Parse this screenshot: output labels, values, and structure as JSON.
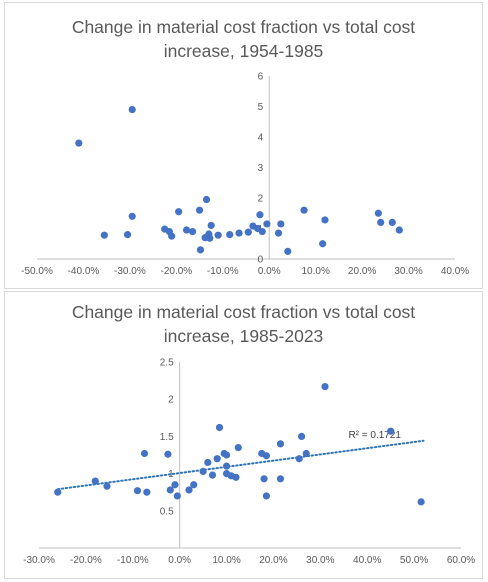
{
  "chart_data": [
    {
      "type": "scatter",
      "title_lines": [
        "Change in material cost fraction vs total cost",
        "increase, 1954-1985"
      ],
      "xlabel": "",
      "ylabel": "",
      "xlim": [
        -0.5,
        0.4
      ],
      "ylim": [
        0,
        6
      ],
      "x_ticks": [
        "-50.0%",
        "-40.0%",
        "-30.0%",
        "-20.0%",
        "-10.0%",
        "0.0%",
        "10.0%",
        "20.0%",
        "30.0%",
        "40.0%"
      ],
      "y_ticks": [
        "0",
        "1",
        "2",
        "3",
        "4",
        "5",
        "6"
      ],
      "grid": false,
      "marker_color": "#4472c4",
      "points": [
        [
          -0.41,
          3.8
        ],
        [
          -0.295,
          4.9
        ],
        [
          -0.355,
          0.78
        ],
        [
          -0.305,
          0.8
        ],
        [
          -0.295,
          1.4
        ],
        [
          -0.225,
          0.98
        ],
        [
          -0.215,
          0.9
        ],
        [
          -0.21,
          0.75
        ],
        [
          -0.195,
          1.55
        ],
        [
          -0.178,
          0.95
        ],
        [
          -0.165,
          0.9
        ],
        [
          -0.15,
          1.6
        ],
        [
          -0.148,
          0.3
        ],
        [
          -0.138,
          0.7
        ],
        [
          -0.135,
          1.95
        ],
        [
          -0.13,
          0.82
        ],
        [
          -0.128,
          0.68
        ],
        [
          -0.125,
          1.1
        ],
        [
          -0.11,
          0.78
        ],
        [
          -0.085,
          0.8
        ],
        [
          -0.065,
          0.85
        ],
        [
          -0.045,
          0.88
        ],
        [
          -0.035,
          1.08
        ],
        [
          -0.025,
          1.0
        ],
        [
          -0.02,
          1.45
        ],
        [
          -0.015,
          0.9
        ],
        [
          -0.005,
          1.15
        ],
        [
          0.02,
          0.85
        ],
        [
          0.025,
          1.15
        ],
        [
          0.04,
          0.25
        ],
        [
          0.075,
          1.6
        ],
        [
          0.115,
          0.5
        ],
        [
          0.12,
          1.28
        ],
        [
          0.235,
          1.5
        ],
        [
          0.24,
          1.2
        ],
        [
          0.265,
          1.2
        ],
        [
          0.28,
          0.95
        ]
      ]
    },
    {
      "type": "scatter",
      "title_lines": [
        "Change in material cost fraction vs total cost",
        "increase, 1985-2023"
      ],
      "xlabel": "",
      "ylabel": "",
      "xlim": [
        -0.3,
        0.6
      ],
      "ylim": [
        0,
        2.5
      ],
      "x_ticks": [
        "-30.0%",
        "-20.0%",
        "-10.0%",
        "0.0%",
        "10.0%",
        "20.0%",
        "30.0%",
        "40.0%",
        "50.0%",
        "60.0%"
      ],
      "y_ticks": [
        "0.5",
        "1",
        "1.5",
        "2",
        "2.5"
      ],
      "grid": false,
      "marker_color": "#4472c4",
      "trendline": {
        "type": "linear",
        "style": "dotted",
        "color": "#2e75b6",
        "r_squared_label": "R² = 0.1721",
        "x_range": [
          -0.26,
          0.52
        ]
      },
      "points": [
        [
          -0.26,
          0.75
        ],
        [
          -0.18,
          0.9
        ],
        [
          -0.155,
          0.83
        ],
        [
          -0.09,
          0.77
        ],
        [
          -0.075,
          1.27
        ],
        [
          -0.07,
          0.75
        ],
        [
          -0.025,
          1.26
        ],
        [
          -0.02,
          0.78
        ],
        [
          -0.01,
          0.85
        ],
        [
          -0.005,
          0.7
        ],
        [
          0.02,
          0.78
        ],
        [
          0.03,
          0.85
        ],
        [
          0.05,
          1.03
        ],
        [
          0.06,
          1.15
        ],
        [
          0.07,
          0.98
        ],
        [
          0.08,
          1.2
        ],
        [
          0.085,
          1.62
        ],
        [
          0.095,
          1.27
        ],
        [
          0.1,
          1.25
        ],
        [
          0.1,
          1.1
        ],
        [
          0.1,
          1.0
        ],
        [
          0.11,
          0.97
        ],
        [
          0.12,
          0.95
        ],
        [
          0.125,
          1.35
        ],
        [
          0.175,
          1.27
        ],
        [
          0.18,
          0.93
        ],
        [
          0.185,
          1.24
        ],
        [
          0.185,
          0.7
        ],
        [
          0.215,
          0.93
        ],
        [
          0.215,
          1.4
        ],
        [
          0.255,
          1.2
        ],
        [
          0.26,
          1.5
        ],
        [
          0.27,
          1.27
        ],
        [
          0.31,
          2.17
        ],
        [
          0.45,
          1.57
        ],
        [
          0.515,
          0.62
        ]
      ]
    }
  ]
}
